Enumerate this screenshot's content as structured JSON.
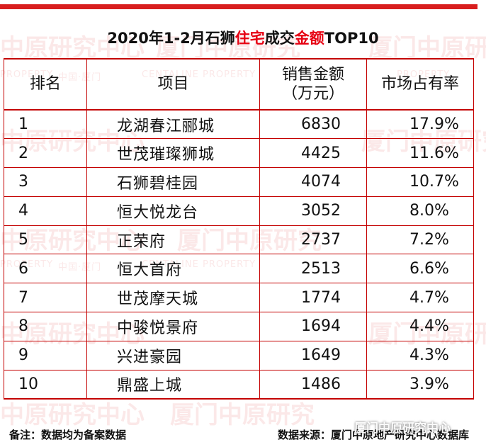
{
  "title": {
    "part1": "2020年1-2月石狮",
    "highlight1": "住宅",
    "part2": "成交",
    "highlight2": "金额",
    "part3": "TOP10"
  },
  "table": {
    "headers": {
      "rank": "排名",
      "project": "项目",
      "sales_line1": "销售金额",
      "sales_line2": "（万元）",
      "share": "市场占有率"
    },
    "rows": [
      {
        "rank": "1",
        "project": "龙湖春江郦城",
        "sales": "6830",
        "share": "17.9%"
      },
      {
        "rank": "2",
        "project": "世茂璀璨狮城",
        "sales": "4425",
        "share": "11.6%"
      },
      {
        "rank": "3",
        "project": "石狮碧桂园",
        "sales": "4074",
        "share": "10.7%"
      },
      {
        "rank": "4",
        "project": "恒大悦龙台",
        "sales": "3052",
        "share": "8.0%"
      },
      {
        "rank": "5",
        "project": "正荣府",
        "sales": "2737",
        "share": "7.2%"
      },
      {
        "rank": "6",
        "project": "恒大首府",
        "sales": "2513",
        "share": "6.6%"
      },
      {
        "rank": "7",
        "project": "世茂摩天城",
        "sales": "1774",
        "share": "4.7%"
      },
      {
        "rank": "8",
        "project": "中骏悦景府",
        "sales": "1694",
        "share": "4.4%"
      },
      {
        "rank": "9",
        "project": "兴进豪园",
        "sales": "1649",
        "share": "4.3%"
      },
      {
        "rank": "10",
        "project": "鼎盛上城",
        "sales": "1486",
        "share": "3.9%"
      }
    ]
  },
  "footer": {
    "note": "备注：数据均为备案数据",
    "source": "数据来源：厦门中原地产研究中心数据库"
  },
  "watermarks": {
    "main": "中原研究中心",
    "xiamen": "厦门中原研究",
    "property": "PROPERTY",
    "centaline": "CENTALINE PROPERTY",
    "city": "中国·厦门"
  },
  "wechat_mark": "厦门中原研究中心",
  "colors": {
    "accent": "#d81e1e",
    "highlight": "#e60012",
    "border": "#c40000"
  }
}
